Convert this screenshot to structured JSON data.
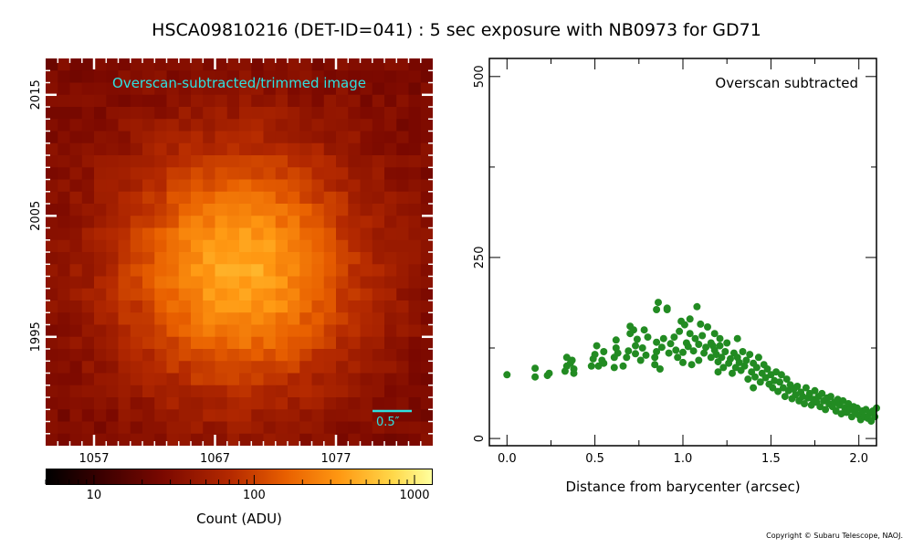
{
  "title": "HSCA09810216 (DET-ID=041) :  5 sec exposure with NB0973 for GD71",
  "image_panel": {
    "label": "Overscan-subtracted/trimmed image",
    "scale_bar_label": "0.5″",
    "x_ticks": [
      "1057",
      "1067",
      "1077"
    ],
    "y_ticks": [
      "2015",
      "2005",
      "1995"
    ],
    "x_tick_values": [
      1057,
      1067,
      1077
    ],
    "y_tick_values": [
      2015,
      2005,
      1995
    ],
    "x_range": [
      1053,
      1085
    ],
    "y_range": [
      1986,
      2018
    ]
  },
  "colorbar": {
    "label": "Count (ADU)",
    "ticks": [
      "10",
      "100",
      "1000"
    ],
    "tick_values": [
      10,
      100,
      1000
    ],
    "range": [
      5,
      1300
    ],
    "scale": "log",
    "colormap": "afmhot"
  },
  "chart_data": {
    "type": "scatter",
    "title": "HSCA09810216 (DET-ID=041) :  5 sec exposure with NB0973 for GD71",
    "annotation": "Overscan subtracted",
    "xlabel": "Distance from barycenter (arcsec)",
    "ylabel": "",
    "xlim": [
      -0.1,
      2.1
    ],
    "ylim": [
      -10,
      525
    ],
    "x_ticks": [
      "0.0",
      "0.5",
      "1.0",
      "1.5",
      "2.0"
    ],
    "x_tick_values": [
      0.0,
      0.5,
      1.0,
      1.5,
      2.0
    ],
    "y_ticks": [
      "0",
      "250",
      "500"
    ],
    "y_tick_values": [
      0,
      250,
      500
    ],
    "grid": false,
    "marker_color": "#228b22",
    "points": [
      [
        0.0,
        88
      ],
      [
        0.16,
        85
      ],
      [
        0.16,
        97
      ],
      [
        0.23,
        87
      ],
      [
        0.24,
        90
      ],
      [
        0.33,
        93
      ],
      [
        0.34,
        100
      ],
      [
        0.34,
        112
      ],
      [
        0.36,
        104
      ],
      [
        0.37,
        108
      ],
      [
        0.38,
        96
      ],
      [
        0.38,
        90
      ],
      [
        0.48,
        100
      ],
      [
        0.49,
        110
      ],
      [
        0.5,
        116
      ],
      [
        0.51,
        128
      ],
      [
        0.52,
        100
      ],
      [
        0.54,
        108
      ],
      [
        0.55,
        120
      ],
      [
        0.55,
        104
      ],
      [
        0.61,
        98
      ],
      [
        0.61,
        112
      ],
      [
        0.62,
        125
      ],
      [
        0.62,
        136
      ],
      [
        0.63,
        118
      ],
      [
        0.66,
        100
      ],
      [
        0.68,
        112
      ],
      [
        0.69,
        121
      ],
      [
        0.7,
        155
      ],
      [
        0.7,
        145
      ],
      [
        0.72,
        150
      ],
      [
        0.73,
        117
      ],
      [
        0.73,
        128
      ],
      [
        0.74,
        137
      ],
      [
        0.76,
        108
      ],
      [
        0.77,
        125
      ],
      [
        0.78,
        150
      ],
      [
        0.79,
        115
      ],
      [
        0.8,
        140
      ],
      [
        0.84,
        102
      ],
      [
        0.84,
        112
      ],
      [
        0.85,
        120
      ],
      [
        0.85,
        133
      ],
      [
        0.85,
        178
      ],
      [
        0.86,
        188
      ],
      [
        0.87,
        96
      ],
      [
        0.88,
        126
      ],
      [
        0.89,
        138
      ],
      [
        0.91,
        178
      ],
      [
        0.91,
        180
      ],
      [
        0.92,
        118
      ],
      [
        0.93,
        131
      ],
      [
        0.95,
        140
      ],
      [
        0.96,
        122
      ],
      [
        0.97,
        112
      ],
      [
        0.98,
        148
      ],
      [
        0.99,
        162
      ],
      [
        1.0,
        105
      ],
      [
        1.0,
        119
      ],
      [
        1.01,
        157
      ],
      [
        1.02,
        132
      ],
      [
        1.03,
        127
      ],
      [
        1.04,
        145
      ],
      [
        1.04,
        165
      ],
      [
        1.05,
        102
      ],
      [
        1.06,
        121
      ],
      [
        1.07,
        138
      ],
      [
        1.08,
        182
      ],
      [
        1.09,
        108
      ],
      [
        1.09,
        130
      ],
      [
        1.1,
        158
      ],
      [
        1.11,
        142
      ],
      [
        1.12,
        118
      ],
      [
        1.13,
        126
      ],
      [
        1.14,
        154
      ],
      [
        1.16,
        112
      ],
      [
        1.16,
        132
      ],
      [
        1.17,
        128
      ],
      [
        1.18,
        122
      ],
      [
        1.18,
        145
      ],
      [
        1.19,
        116
      ],
      [
        1.2,
        106
      ],
      [
        1.2,
        92
      ],
      [
        1.21,
        128
      ],
      [
        1.21,
        138
      ],
      [
        1.22,
        112
      ],
      [
        1.23,
        98
      ],
      [
        1.24,
        120
      ],
      [
        1.25,
        132
      ],
      [
        1.26,
        104
      ],
      [
        1.27,
        110
      ],
      [
        1.28,
        90
      ],
      [
        1.29,
        118
      ],
      [
        1.3,
        98
      ],
      [
        1.31,
        112
      ],
      [
        1.31,
        138
      ],
      [
        1.32,
        105
      ],
      [
        1.33,
        94
      ],
      [
        1.34,
        120
      ],
      [
        1.35,
        100
      ],
      [
        1.36,
        108
      ],
      [
        1.37,
        82
      ],
      [
        1.38,
        116
      ],
      [
        1.39,
        92
      ],
      [
        1.4,
        104
      ],
      [
        1.4,
        70
      ],
      [
        1.41,
        85
      ],
      [
        1.42,
        98
      ],
      [
        1.43,
        112
      ],
      [
        1.44,
        78
      ],
      [
        1.45,
        90
      ],
      [
        1.46,
        102
      ],
      [
        1.47,
        84
      ],
      [
        1.48,
        96
      ],
      [
        1.49,
        75
      ],
      [
        1.5,
        88
      ],
      [
        1.51,
        70
      ],
      [
        1.52,
        80
      ],
      [
        1.53,
        92
      ],
      [
        1.54,
        65
      ],
      [
        1.55,
        78
      ],
      [
        1.56,
        88
      ],
      [
        1.57,
        70
      ],
      [
        1.58,
        58
      ],
      [
        1.59,
        82
      ],
      [
        1.6,
        66
      ],
      [
        1.61,
        74
      ],
      [
        1.62,
        55
      ],
      [
        1.63,
        68
      ],
      [
        1.64,
        60
      ],
      [
        1.65,
        72
      ],
      [
        1.66,
        52
      ],
      [
        1.67,
        64
      ],
      [
        1.68,
        58
      ],
      [
        1.69,
        48
      ],
      [
        1.7,
        70
      ],
      [
        1.71,
        56
      ],
      [
        1.72,
        62
      ],
      [
        1.73,
        46
      ],
      [
        1.74,
        54
      ],
      [
        1.75,
        66
      ],
      [
        1.76,
        50
      ],
      [
        1.77,
        58
      ],
      [
        1.78,
        44
      ],
      [
        1.79,
        62
      ],
      [
        1.8,
        52
      ],
      [
        1.81,
        40
      ],
      [
        1.82,
        56
      ],
      [
        1.83,
        48
      ],
      [
        1.84,
        58
      ],
      [
        1.85,
        44
      ],
      [
        1.86,
        50
      ],
      [
        1.87,
        38
      ],
      [
        1.88,
        54
      ],
      [
        1.89,
        46
      ],
      [
        1.9,
        34
      ],
      [
        1.91,
        52
      ],
      [
        1.92,
        42
      ],
      [
        1.93,
        36
      ],
      [
        1.94,
        48
      ],
      [
        1.95,
        40
      ],
      [
        1.96,
        30
      ],
      [
        1.97,
        44
      ],
      [
        1.98,
        36
      ],
      [
        1.99,
        42
      ],
      [
        2.0,
        32
      ],
      [
        2.01,
        26
      ],
      [
        2.02,
        38
      ],
      [
        2.03,
        30
      ],
      [
        2.04,
        40
      ],
      [
        2.05,
        28
      ],
      [
        2.06,
        35
      ],
      [
        2.07,
        24
      ],
      [
        2.08,
        38
      ],
      [
        2.09,
        30
      ],
      [
        2.1,
        42
      ]
    ]
  },
  "copyright": "Copyright © Subaru Telescope, NAOJ."
}
